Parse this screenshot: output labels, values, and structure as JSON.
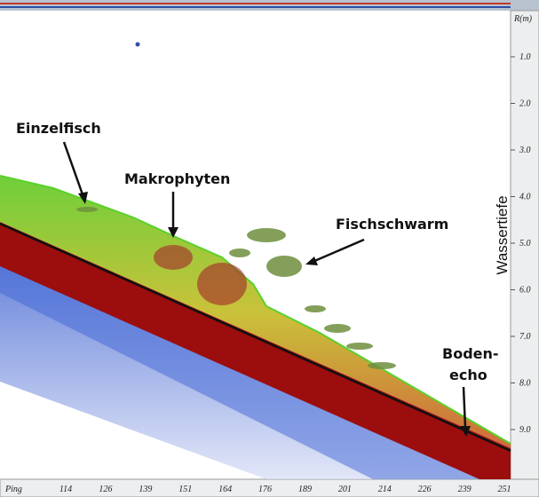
{
  "annotations": {
    "single_fish": "Einzelfisch",
    "macrophytes": "Makrophyten",
    "fish_school": "Fischschwarm",
    "bottom_echo": [
      "Boden-",
      "echo"
    ]
  },
  "depth_axis": {
    "label": "Wassertiefe",
    "unit": "R(m)",
    "ticks": [
      "1.0",
      "2.0",
      "3.0",
      "4.0",
      "5.0",
      "6.0",
      "7.0",
      "8.0",
      "9.0"
    ]
  },
  "ping_axis": {
    "label": "Ping",
    "ticks": [
      "114",
      "126",
      "139",
      "151",
      "164",
      "176",
      "189",
      "201",
      "214",
      "226",
      "239",
      "251"
    ]
  }
}
